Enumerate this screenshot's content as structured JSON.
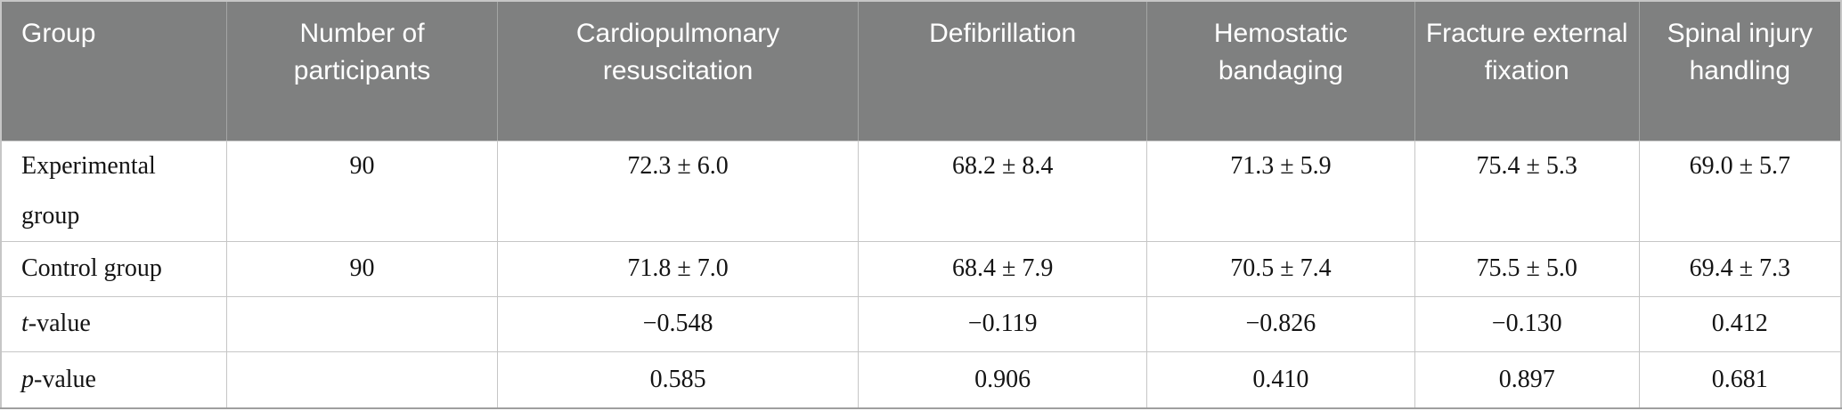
{
  "table": {
    "columns": [
      "Group",
      "Number of participants",
      "Cardiopulmonary resuscitation",
      "Defibrillation",
      "Hemostatic bandaging",
      "Fracture external fixation",
      "Spinal injury handling"
    ],
    "rows": [
      {
        "label": {
          "prefix": "",
          "rest": "Experimental group"
        },
        "cells": [
          "90",
          "72.3 ± 6.0",
          "68.2 ± 8.4",
          "71.3 ± 5.9",
          "75.4 ± 5.3",
          "69.0 ± 5.7"
        ]
      },
      {
        "label": {
          "prefix": "",
          "rest": "Control group"
        },
        "cells": [
          "90",
          "71.8 ± 7.0",
          "68.4 ± 7.9",
          "70.5 ± 7.4",
          "75.5 ± 5.0",
          "69.4 ± 7.3"
        ]
      },
      {
        "label": {
          "prefix": "t",
          "rest": "-value"
        },
        "cells": [
          "",
          "−0.548",
          "−0.119",
          "−0.826",
          "−0.130",
          "0.412"
        ]
      },
      {
        "label": {
          "prefix": "p",
          "rest": "-value"
        },
        "cells": [
          "",
          "0.585",
          "0.906",
          "0.410",
          "0.897",
          "0.681"
        ]
      }
    ],
    "colors": {
      "header_bg": "#7f8080",
      "header_text": "#ffffff",
      "body_text": "#141414",
      "grid_line": "#c6c6c6",
      "header_divider": "#a3a5a4",
      "bottom_border": "#9f9f9f"
    }
  }
}
